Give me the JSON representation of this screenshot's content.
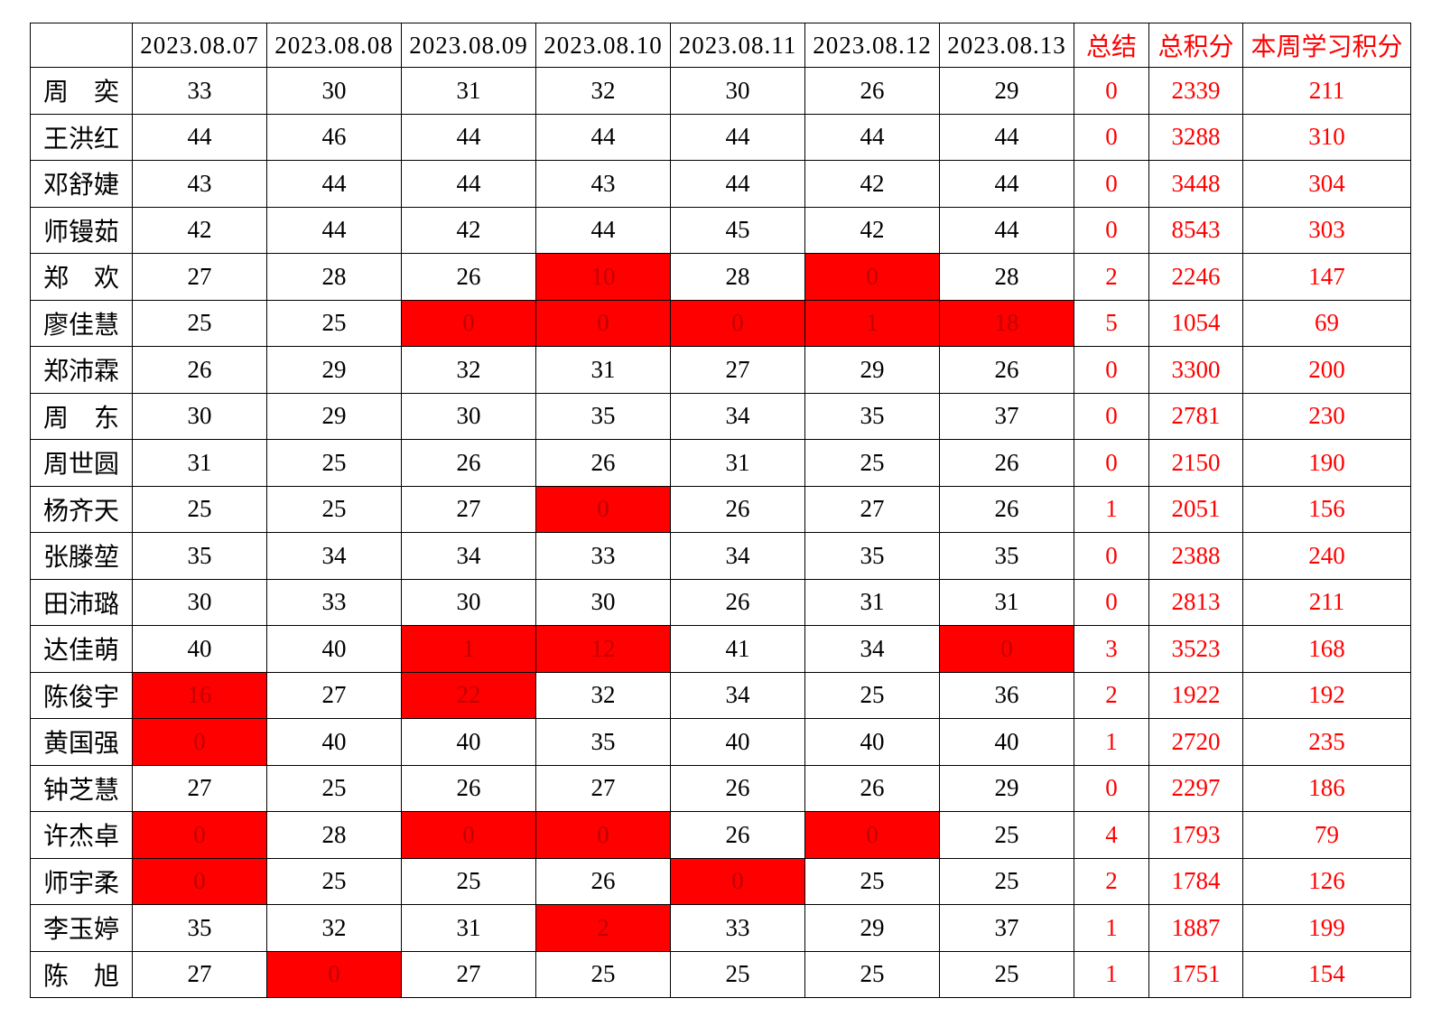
{
  "colors": {
    "grid_line": "#000000",
    "text_black": "#000000",
    "accent_red": "#ff0000",
    "flag_cell_background": "#ff0000",
    "flag_cell_text": "#c00000"
  },
  "table": {
    "header": {
      "corner": "",
      "dates": [
        "2023.08.07",
        "2023.08.08",
        "2023.08.09",
        "2023.08.10",
        "2023.08.11",
        "2023.08.12",
        "2023.08.13"
      ],
      "summary_label": "总结",
      "total_label": "总积分",
      "week_label": "本周学习积分"
    },
    "rows": [
      {
        "name": "周奕",
        "daily": [
          {
            "v": "33",
            "red": false
          },
          {
            "v": "30",
            "red": false
          },
          {
            "v": "31",
            "red": false
          },
          {
            "v": "32",
            "red": false
          },
          {
            "v": "30",
            "red": false
          },
          {
            "v": "26",
            "red": false
          },
          {
            "v": "29",
            "red": false
          }
        ],
        "summary": "0",
        "total": "2339",
        "week": "211"
      },
      {
        "name": "王洪红",
        "daily": [
          {
            "v": "44",
            "red": false
          },
          {
            "v": "46",
            "red": false
          },
          {
            "v": "44",
            "red": false
          },
          {
            "v": "44",
            "red": false
          },
          {
            "v": "44",
            "red": false
          },
          {
            "v": "44",
            "red": false
          },
          {
            "v": "44",
            "red": false
          }
        ],
        "summary": "0",
        "total": "3288",
        "week": "310"
      },
      {
        "name": "邓舒婕",
        "daily": [
          {
            "v": "43",
            "red": false
          },
          {
            "v": "44",
            "red": false
          },
          {
            "v": "44",
            "red": false
          },
          {
            "v": "43",
            "red": false
          },
          {
            "v": "44",
            "red": false
          },
          {
            "v": "42",
            "red": false
          },
          {
            "v": "44",
            "red": false
          }
        ],
        "summary": "0",
        "total": "3448",
        "week": "304"
      },
      {
        "name": "师镘茹",
        "daily": [
          {
            "v": "42",
            "red": false
          },
          {
            "v": "44",
            "red": false
          },
          {
            "v": "42",
            "red": false
          },
          {
            "v": "44",
            "red": false
          },
          {
            "v": "45",
            "red": false
          },
          {
            "v": "42",
            "red": false
          },
          {
            "v": "44",
            "red": false
          }
        ],
        "summary": "0",
        "total": "8543",
        "week": "303"
      },
      {
        "name": "郑欢",
        "daily": [
          {
            "v": "27",
            "red": false
          },
          {
            "v": "28",
            "red": false
          },
          {
            "v": "26",
            "red": false
          },
          {
            "v": "10",
            "red": true
          },
          {
            "v": "28",
            "red": false
          },
          {
            "v": "0",
            "red": true
          },
          {
            "v": "28",
            "red": false
          }
        ],
        "summary": "2",
        "total": "2246",
        "week": "147"
      },
      {
        "name": "廖佳慧",
        "daily": [
          {
            "v": "25",
            "red": false
          },
          {
            "v": "25",
            "red": false
          },
          {
            "v": "0",
            "red": true
          },
          {
            "v": "0",
            "red": true
          },
          {
            "v": "0",
            "red": true
          },
          {
            "v": "1",
            "red": true
          },
          {
            "v": "18",
            "red": true
          }
        ],
        "summary": "5",
        "total": "1054",
        "week": "69"
      },
      {
        "name": "郑沛霖",
        "daily": [
          {
            "v": "26",
            "red": false
          },
          {
            "v": "29",
            "red": false
          },
          {
            "v": "32",
            "red": false
          },
          {
            "v": "31",
            "red": false
          },
          {
            "v": "27",
            "red": false
          },
          {
            "v": "29",
            "red": false
          },
          {
            "v": "26",
            "red": false
          }
        ],
        "summary": "0",
        "total": "3300",
        "week": "200"
      },
      {
        "name": "周东",
        "daily": [
          {
            "v": "30",
            "red": false
          },
          {
            "v": "29",
            "red": false
          },
          {
            "v": "30",
            "red": false
          },
          {
            "v": "35",
            "red": false
          },
          {
            "v": "34",
            "red": false
          },
          {
            "v": "35",
            "red": false
          },
          {
            "v": "37",
            "red": false
          }
        ],
        "summary": "0",
        "total": "2781",
        "week": "230"
      },
      {
        "name": "周世圆",
        "daily": [
          {
            "v": "31",
            "red": false
          },
          {
            "v": "25",
            "red": false
          },
          {
            "v": "26",
            "red": false
          },
          {
            "v": "26",
            "red": false
          },
          {
            "v": "31",
            "red": false
          },
          {
            "v": "25",
            "red": false
          },
          {
            "v": "26",
            "red": false
          }
        ],
        "summary": "0",
        "total": "2150",
        "week": "190"
      },
      {
        "name": "杨齐天",
        "daily": [
          {
            "v": "25",
            "red": false
          },
          {
            "v": "25",
            "red": false
          },
          {
            "v": "27",
            "red": false
          },
          {
            "v": "0",
            "red": true
          },
          {
            "v": "26",
            "red": false
          },
          {
            "v": "27",
            "red": false
          },
          {
            "v": "26",
            "red": false
          }
        ],
        "summary": "1",
        "total": "2051",
        "week": "156"
      },
      {
        "name": "张滕堃",
        "daily": [
          {
            "v": "35",
            "red": false
          },
          {
            "v": "34",
            "red": false
          },
          {
            "v": "34",
            "red": false
          },
          {
            "v": "33",
            "red": false
          },
          {
            "v": "34",
            "red": false
          },
          {
            "v": "35",
            "red": false
          },
          {
            "v": "35",
            "red": false
          }
        ],
        "summary": "0",
        "total": "2388",
        "week": "240"
      },
      {
        "name": "田沛璐",
        "daily": [
          {
            "v": "30",
            "red": false
          },
          {
            "v": "33",
            "red": false
          },
          {
            "v": "30",
            "red": false
          },
          {
            "v": "30",
            "red": false
          },
          {
            "v": "26",
            "red": false
          },
          {
            "v": "31",
            "red": false
          },
          {
            "v": "31",
            "red": false
          }
        ],
        "summary": "0",
        "total": "2813",
        "week": "211"
      },
      {
        "name": "达佳萌",
        "daily": [
          {
            "v": "40",
            "red": false
          },
          {
            "v": "40",
            "red": false
          },
          {
            "v": "1",
            "red": true
          },
          {
            "v": "12",
            "red": true
          },
          {
            "v": "41",
            "red": false
          },
          {
            "v": "34",
            "red": false
          },
          {
            "v": "0",
            "red": true
          }
        ],
        "summary": "3",
        "total": "3523",
        "week": "168"
      },
      {
        "name": "陈俊宇",
        "daily": [
          {
            "v": "16",
            "red": true
          },
          {
            "v": "27",
            "red": false
          },
          {
            "v": "22",
            "red": true
          },
          {
            "v": "32",
            "red": false
          },
          {
            "v": "34",
            "red": false
          },
          {
            "v": "25",
            "red": false
          },
          {
            "v": "36",
            "red": false
          }
        ],
        "summary": "2",
        "total": "1922",
        "week": "192"
      },
      {
        "name": "黄国强",
        "daily": [
          {
            "v": "0",
            "red": true
          },
          {
            "v": "40",
            "red": false
          },
          {
            "v": "40",
            "red": false
          },
          {
            "v": "35",
            "red": false
          },
          {
            "v": "40",
            "red": false
          },
          {
            "v": "40",
            "red": false
          },
          {
            "v": "40",
            "red": false
          }
        ],
        "summary": "1",
        "total": "2720",
        "week": "235"
      },
      {
        "name": "钟芝慧",
        "daily": [
          {
            "v": "27",
            "red": false
          },
          {
            "v": "25",
            "red": false
          },
          {
            "v": "26",
            "red": false
          },
          {
            "v": "27",
            "red": false
          },
          {
            "v": "26",
            "red": false
          },
          {
            "v": "26",
            "red": false
          },
          {
            "v": "29",
            "red": false
          }
        ],
        "summary": "0",
        "total": "2297",
        "week": "186"
      },
      {
        "name": "许杰卓",
        "daily": [
          {
            "v": "0",
            "red": true
          },
          {
            "v": "28",
            "red": false
          },
          {
            "v": "0",
            "red": true
          },
          {
            "v": "0",
            "red": true
          },
          {
            "v": "26",
            "red": false
          },
          {
            "v": "0",
            "red": true
          },
          {
            "v": "25",
            "red": false
          }
        ],
        "summary": "4",
        "total": "1793",
        "week": "79"
      },
      {
        "name": "师宇柔",
        "daily": [
          {
            "v": "0",
            "red": true
          },
          {
            "v": "25",
            "red": false
          },
          {
            "v": "25",
            "red": false
          },
          {
            "v": "26",
            "red": false
          },
          {
            "v": "0",
            "red": true
          },
          {
            "v": "25",
            "red": false
          },
          {
            "v": "25",
            "red": false
          }
        ],
        "summary": "2",
        "total": "1784",
        "week": "126"
      },
      {
        "name": "李玉婷",
        "daily": [
          {
            "v": "35",
            "red": false
          },
          {
            "v": "32",
            "red": false
          },
          {
            "v": "31",
            "red": false
          },
          {
            "v": "2",
            "red": true
          },
          {
            "v": "33",
            "red": false
          },
          {
            "v": "29",
            "red": false
          },
          {
            "v": "37",
            "red": false
          }
        ],
        "summary": "1",
        "total": "1887",
        "week": "199"
      },
      {
        "name": "陈旭",
        "daily": [
          {
            "v": "27",
            "red": false
          },
          {
            "v": "0",
            "red": true
          },
          {
            "v": "27",
            "red": false
          },
          {
            "v": "25",
            "red": false
          },
          {
            "v": "25",
            "red": false
          },
          {
            "v": "25",
            "red": false
          },
          {
            "v": "25",
            "red": false
          }
        ],
        "summary": "1",
        "total": "1751",
        "week": "154"
      }
    ]
  }
}
